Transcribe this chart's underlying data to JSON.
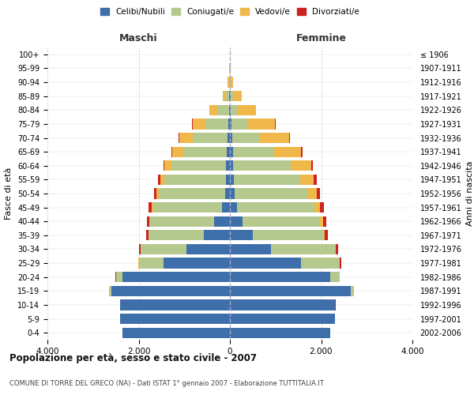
{
  "age_groups": [
    "0-4",
    "5-9",
    "10-14",
    "15-19",
    "20-24",
    "25-29",
    "30-34",
    "35-39",
    "40-44",
    "45-49",
    "50-54",
    "55-59",
    "60-64",
    "65-69",
    "70-74",
    "75-79",
    "80-84",
    "85-89",
    "90-94",
    "95-99",
    "100+"
  ],
  "birth_years": [
    "2002-2006",
    "1997-2001",
    "1992-1996",
    "1987-1991",
    "1982-1986",
    "1977-1981",
    "1972-1976",
    "1967-1971",
    "1962-1966",
    "1957-1961",
    "1952-1956",
    "1947-1951",
    "1942-1946",
    "1937-1941",
    "1932-1936",
    "1927-1931",
    "1922-1926",
    "1917-1921",
    "1912-1916",
    "1907-1911",
    "≤ 1906"
  ],
  "male": {
    "celibi": [
      2350,
      2400,
      2400,
      2600,
      2350,
      1450,
      950,
      580,
      350,
      180,
      110,
      95,
      80,
      70,
      60,
      40,
      20,
      10,
      5,
      2,
      2
    ],
    "coniugati": [
      5,
      5,
      10,
      50,
      150,
      550,
      1000,
      1200,
      1400,
      1500,
      1450,
      1350,
      1200,
      950,
      750,
      500,
      250,
      80,
      20,
      5,
      2
    ],
    "vedovi": [
      1,
      1,
      1,
      2,
      2,
      2,
      5,
      5,
      10,
      30,
      50,
      80,
      150,
      250,
      300,
      280,
      180,
      70,
      20,
      5,
      1
    ],
    "divorziati": [
      0,
      0,
      1,
      2,
      5,
      15,
      30,
      50,
      60,
      70,
      60,
      50,
      30,
      20,
      15,
      10,
      5,
      2,
      1,
      0,
      0
    ]
  },
  "female": {
    "nubili": [
      2200,
      2300,
      2300,
      2650,
      2200,
      1550,
      900,
      500,
      280,
      150,
      100,
      90,
      75,
      65,
      55,
      40,
      25,
      15,
      8,
      3,
      2
    ],
    "coniugate": [
      5,
      5,
      10,
      60,
      200,
      850,
      1400,
      1550,
      1700,
      1700,
      1600,
      1450,
      1250,
      900,
      600,
      350,
      150,
      60,
      15,
      5,
      2
    ],
    "vedove": [
      1,
      1,
      1,
      3,
      5,
      10,
      20,
      30,
      60,
      120,
      200,
      300,
      450,
      600,
      650,
      600,
      400,
      180,
      50,
      10,
      2
    ],
    "divorziate": [
      0,
      0,
      1,
      3,
      10,
      25,
      50,
      60,
      80,
      90,
      80,
      70,
      50,
      25,
      15,
      10,
      5,
      3,
      1,
      0,
      0
    ]
  },
  "colors": {
    "celibi": "#3f6faa",
    "coniugati": "#b5c98e",
    "vedovi": "#f0b84a",
    "divorziati": "#cc2222"
  },
  "title": "Popolazione per età, sesso e stato civile - 2007",
  "subtitle": "COMUNE DI TORRE DEL GRECO (NA) - Dati ISTAT 1° gennaio 2007 - Elaborazione TUTTITALIA.IT",
  "label_maschi": "Maschi",
  "label_femmine": "Femmine",
  "ylabel_left": "Fasce di età",
  "ylabel_right": "Anni di nascita",
  "xlim": 4000,
  "legend_labels": [
    "Celibi/Nubili",
    "Coniugati/e",
    "Vedovi/e",
    "Divorziati/e"
  ],
  "bar_height": 0.75
}
